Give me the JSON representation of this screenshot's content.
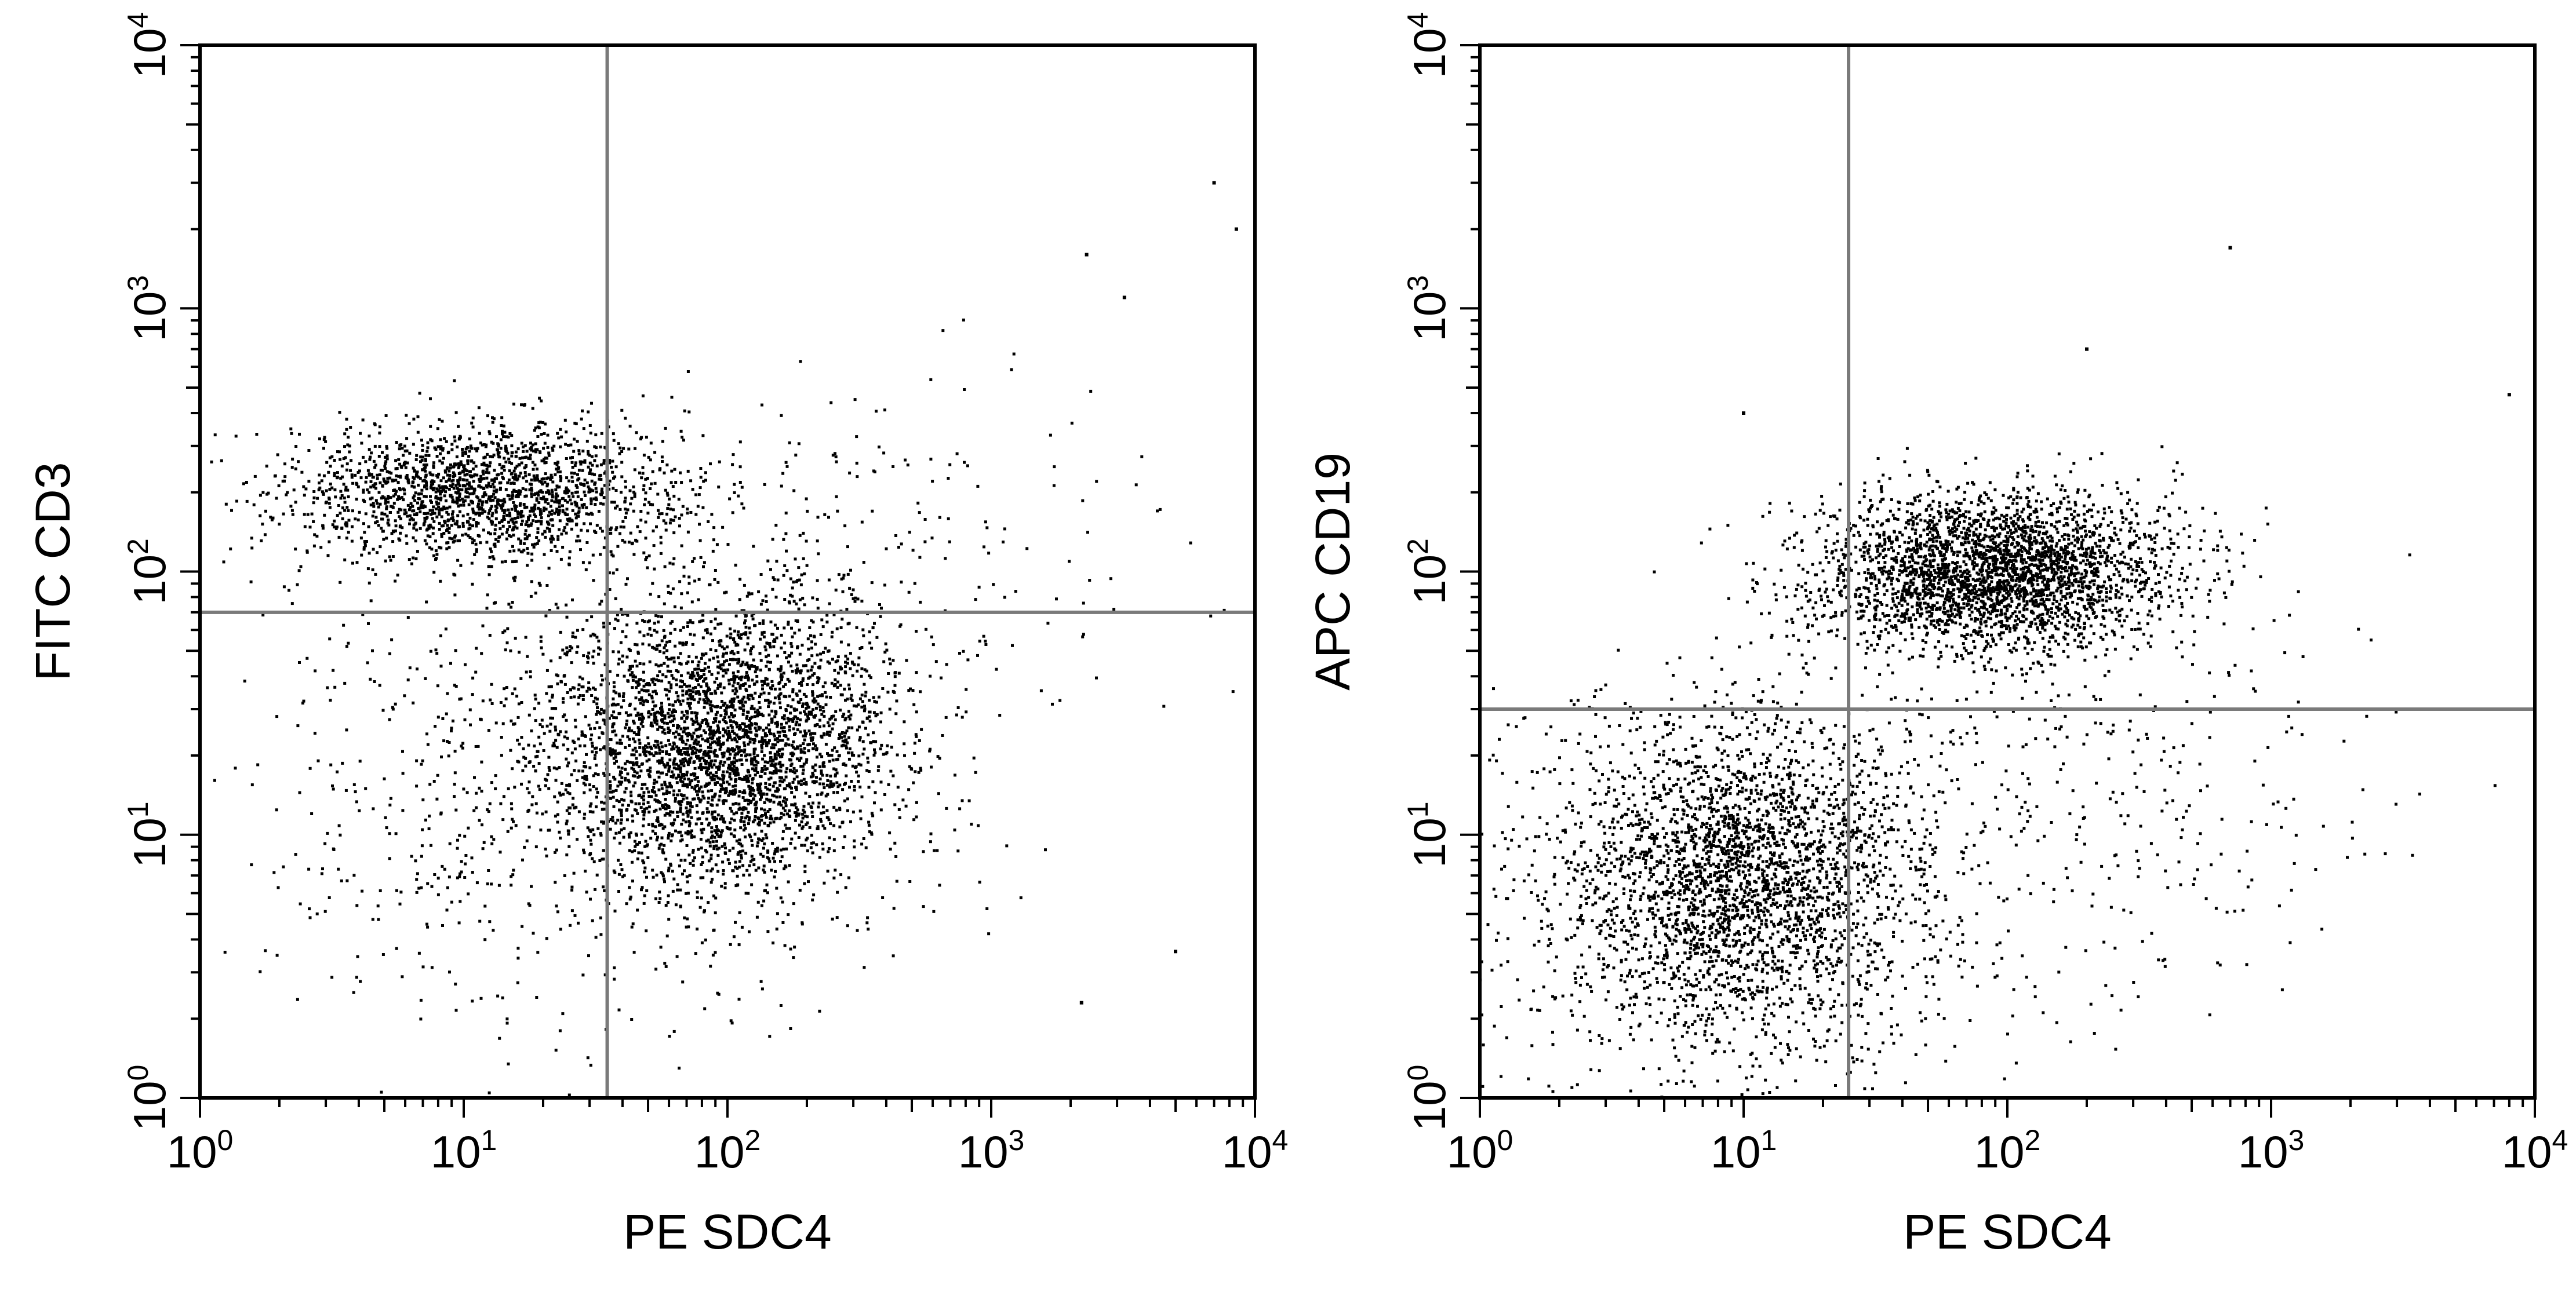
{
  "chart_data": [
    {
      "type": "scatter",
      "subtype": "flow-cytometry-dot-plot",
      "xlabel": "PE SDC4",
      "ylabel": "FITC CD3",
      "xscale": "log",
      "yscale": "log",
      "xlim": [
        1,
        10000
      ],
      "ylim": [
        1,
        10000
      ],
      "x_tick_labels": [
        {
          "value": 1,
          "base": "10",
          "exp": "0"
        },
        {
          "value": 10,
          "base": "10",
          "exp": "1"
        },
        {
          "value": 100,
          "base": "10",
          "exp": "2"
        },
        {
          "value": 1000,
          "base": "10",
          "exp": "3"
        },
        {
          "value": 10000,
          "base": "10",
          "exp": "4"
        }
      ],
      "y_tick_labels": [
        {
          "value": 1,
          "base": "10",
          "exp": "0"
        },
        {
          "value": 10,
          "base": "10",
          "exp": "1"
        },
        {
          "value": 100,
          "base": "10",
          "exp": "2"
        },
        {
          "value": 1000,
          "base": "10",
          "exp": "3"
        },
        {
          "value": 10000,
          "base": "10",
          "exp": "4"
        }
      ],
      "quadrant_gate": {
        "x": 35,
        "y": 70
      },
      "grid": false,
      "point_color": "#000000",
      "populations": [
        {
          "center_x": 12,
          "center_y": 200,
          "sd_log_x": 0.38,
          "sd_log_y": 0.13,
          "count": 1900
        },
        {
          "center_x": 100,
          "center_y": 22,
          "sd_log_x": 0.32,
          "sd_log_y": 0.27,
          "count": 3200
        },
        {
          "center_x": 25,
          "center_y": 15,
          "sd_log_x": 0.65,
          "sd_log_y": 0.45,
          "count": 900
        },
        {
          "center_x": 300,
          "center_y": 120,
          "sd_log_x": 0.6,
          "sd_log_y": 0.35,
          "count": 220
        }
      ],
      "outliers": [
        [
          7000,
          3000
        ],
        [
          8500,
          2000
        ],
        [
          2300,
          1600
        ],
        [
          3200,
          1100
        ],
        [
          5000,
          3.6
        ],
        [
          2200,
          2.3
        ]
      ]
    },
    {
      "type": "scatter",
      "subtype": "flow-cytometry-dot-plot",
      "xlabel": "PE SDC4",
      "ylabel": "APC CD19",
      "xscale": "log",
      "yscale": "log",
      "xlim": [
        1,
        10000
      ],
      "ylim": [
        1,
        10000
      ],
      "x_tick_labels": [
        {
          "value": 1,
          "base": "10",
          "exp": "0"
        },
        {
          "value": 10,
          "base": "10",
          "exp": "1"
        },
        {
          "value": 100,
          "base": "10",
          "exp": "2"
        },
        {
          "value": 1000,
          "base": "10",
          "exp": "3"
        },
        {
          "value": 10000,
          "base": "10",
          "exp": "4"
        }
      ],
      "y_tick_labels": [
        {
          "value": 1,
          "base": "10",
          "exp": "0"
        },
        {
          "value": 10,
          "base": "10",
          "exp": "1"
        },
        {
          "value": 100,
          "base": "10",
          "exp": "2"
        },
        {
          "value": 1000,
          "base": "10",
          "exp": "3"
        },
        {
          "value": 10000,
          "base": "10",
          "exp": "4"
        }
      ],
      "quadrant_gate": {
        "x": 25,
        "y": 30
      },
      "grid": false,
      "point_color": "#000000",
      "populations": [
        {
          "center_x": 90,
          "center_y": 100,
          "sd_log_x": 0.33,
          "sd_log_y": 0.15,
          "count": 3000
        },
        {
          "center_x": 10,
          "center_y": 7,
          "sd_log_x": 0.33,
          "sd_log_y": 0.3,
          "count": 2600
        },
        {
          "center_x": 8,
          "center_y": 5,
          "sd_log_x": 0.6,
          "sd_log_y": 0.42,
          "count": 700
        },
        {
          "center_x": 200,
          "center_y": 15,
          "sd_log_x": 0.55,
          "sd_log_y": 0.4,
          "count": 350
        }
      ],
      "outliers": [
        [
          700,
          1700
        ],
        [
          200,
          700
        ],
        [
          8000,
          470
        ],
        [
          10,
          400
        ]
      ]
    }
  ]
}
